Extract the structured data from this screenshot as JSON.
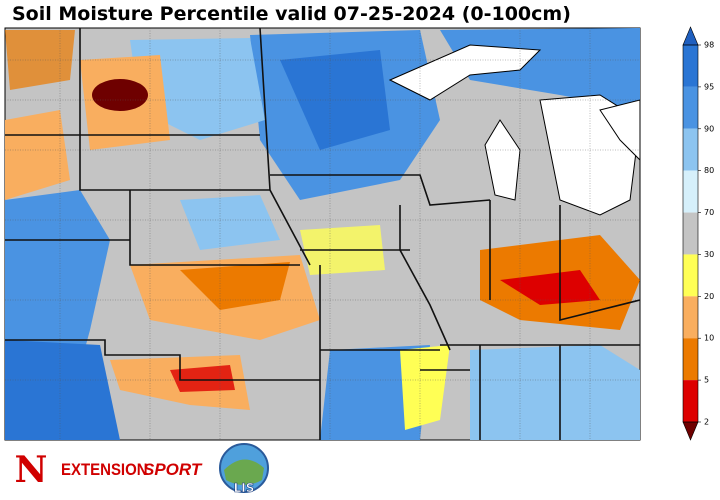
{
  "title": "Soil Moisture Percentile valid 07-25-2024 (0-100cm)",
  "colorbar": {
    "ticks": [
      98,
      95,
      90,
      80,
      70,
      30,
      20,
      10,
      5,
      2
    ],
    "colors": [
      "#1f5fbf",
      "#2a75d4",
      "#4a93e2",
      "#8cc4f0",
      "#d6f0fb",
      "#c4c4c4",
      "#ffff55",
      "#f9ae5f",
      "#ec7a00",
      "#dd0000",
      "#6e0000"
    ],
    "extend": "both"
  },
  "logos": {
    "nebraska": "N",
    "extension": "EXTENSION",
    "sport": "SPORT",
    "lis": "LIS"
  }
}
